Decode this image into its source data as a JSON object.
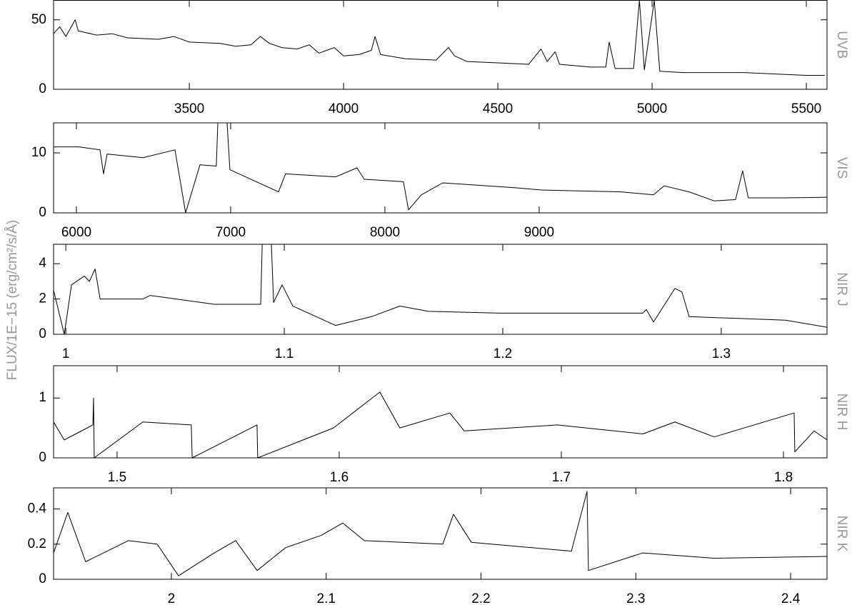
{
  "ylabel": "FLUX/1E−15 (erg/cm²/s/Å)",
  "chart_data": [
    {
      "type": "line",
      "title": "UVB",
      "color": "#000000",
      "xlim": [
        3060,
        5567
      ],
      "ylim": [
        0,
        64
      ],
      "xticks": [
        3500,
        4000,
        4500,
        5000,
        5500
      ],
      "yticks": [
        0,
        50
      ],
      "x": [
        3060,
        3080,
        3100,
        3130,
        3140,
        3160,
        3200,
        3250,
        3300,
        3400,
        3450,
        3500,
        3600,
        3650,
        3700,
        3730,
        3760,
        3800,
        3850,
        3889,
        3920,
        3970,
        4000,
        4050,
        4090,
        4102,
        4120,
        4200,
        4300,
        4340,
        4360,
        4400,
        4500,
        4600,
        4640,
        4660,
        4686,
        4700,
        4800,
        4850,
        4861,
        4880,
        4940,
        4959,
        4975,
        5007,
        5025,
        5100,
        5300,
        5400,
        5500,
        5560
      ],
      "values": [
        40,
        45,
        38,
        50,
        42,
        41,
        39,
        40,
        37,
        36,
        38,
        34,
        33,
        31,
        32,
        38,
        33,
        30,
        29,
        32,
        26,
        30,
        24,
        25,
        28,
        38,
        25,
        22,
        21,
        30,
        24,
        20,
        19,
        18,
        29,
        20,
        27,
        18,
        16,
        16,
        34,
        15,
        15,
        64,
        14,
        64,
        13,
        12,
        12,
        11,
        10,
        10
      ]
    },
    {
      "type": "line",
      "title": "VIS",
      "color": "#000000",
      "xlim": [
        5852,
        10866
      ],
      "ylim": [
        0,
        15
      ],
      "xticks": [
        6000,
        7000,
        8000,
        9000
      ],
      "yticks": [
        0,
        10
      ],
      "x": [
        5852,
        6014,
        6153,
        6176,
        6199,
        6431,
        6639,
        6708,
        6801,
        6907,
        6917,
        6977,
        6995,
        7310,
        7356,
        7681,
        7819,
        7866,
        8120,
        8153,
        8236,
        8375,
        8838,
        9023,
        9532,
        9741,
        9810,
        9972,
        10134,
        10273,
        10319,
        10356,
        10597,
        10866
      ],
      "values": [
        11,
        11,
        10.5,
        6.5,
        9.8,
        9.2,
        10.5,
        0,
        8,
        7.8,
        15,
        15,
        7.2,
        3.5,
        6.5,
        6,
        7.5,
        5.6,
        5.2,
        0.5,
        3,
        5,
        4.2,
        3.8,
        3.5,
        3,
        4.5,
        3.5,
        2,
        2.2,
        7,
        2.5,
        2.5,
        2.6
      ]
    },
    {
      "type": "line",
      "title": "NIR J",
      "color": "#000000",
      "xlim": [
        0.9944,
        1.3484
      ],
      "ylim": [
        0,
        5.1
      ],
      "xticks": [
        1,
        1.1,
        1.2,
        1.3
      ],
      "yticks": [
        0,
        2,
        4
      ],
      "x": [
        0.9944,
        0.9993,
        1.0026,
        1.0085,
        1.0108,
        1.0134,
        1.0157,
        1.0353,
        1.0386,
        1.068,
        1.0892,
        1.0899,
        1.0941,
        1.0951,
        1.099,
        1.1039,
        1.1235,
        1.1399,
        1.1529,
        1.166,
        1.1987,
        1.264,
        1.2657,
        1.269,
        1.2788,
        1.282,
        1.2853,
        1.3294,
        1.3484
      ],
      "values": [
        2.5,
        0,
        2.8,
        3.3,
        3,
        3.7,
        2,
        2,
        2.2,
        1.7,
        1.7,
        5.1,
        5.1,
        1.8,
        2.8,
        1.6,
        0.5,
        1,
        1.6,
        1.3,
        1.2,
        1.2,
        1.4,
        0.7,
        2.6,
        2.4,
        1,
        0.8,
        0.4
      ]
    },
    {
      "type": "line",
      "title": "NIR H",
      "color": "#000000",
      "xlim": [
        1.4714,
        1.8196
      ],
      "ylim": [
        0,
        1.54
      ],
      "xticks": [
        1.5,
        1.6,
        1.7,
        1.8
      ],
      "yticks": [
        0,
        1
      ],
      "x": [
        1.4714,
        1.4762,
        1.4891,
        1.4894,
        1.4897,
        1.5116,
        1.5334,
        1.5338,
        1.563,
        1.5633,
        1.5974,
        1.6183,
        1.6273,
        1.6498,
        1.6563,
        1.6981,
        1.7367,
        1.7511,
        1.7688,
        1.8048,
        1.8051,
        1.8138,
        1.8196
      ],
      "values": [
        0.6,
        0.3,
        0.55,
        1,
        0,
        0.6,
        0.55,
        0,
        0.55,
        0,
        0.5,
        1.1,
        0.5,
        0.75,
        0.45,
        0.55,
        0.4,
        0.6,
        0.35,
        0.75,
        0.1,
        0.45,
        0.3
      ]
    },
    {
      "type": "line",
      "title": "NIR K",
      "color": "#000000",
      "xlim": [
        1.9239,
        2.4235
      ],
      "ylim": [
        0,
        0.52
      ],
      "xticks": [
        2,
        2.1,
        2.2,
        2.3,
        2.4
      ],
      "yticks": [
        0,
        0.2,
        0.4
      ],
      "x": [
        1.9239,
        1.9331,
        1.9446,
        1.9723,
        1.9908,
        2.0046,
        2.0277,
        2.0415,
        2.0554,
        2.0738,
        2.0969,
        2.1107,
        2.1246,
        2.1753,
        2.1822,
        2.1938,
        2.2584,
        2.2685,
        2.2694,
        2.3045,
        2.3506,
        2.4235
      ],
      "values": [
        0.15,
        0.38,
        0.1,
        0.22,
        0.2,
        0.02,
        0.15,
        0.22,
        0.05,
        0.18,
        0.25,
        0.32,
        0.22,
        0.2,
        0.37,
        0.21,
        0.16,
        0.5,
        0.05,
        0.15,
        0.12,
        0.13
      ]
    }
  ]
}
